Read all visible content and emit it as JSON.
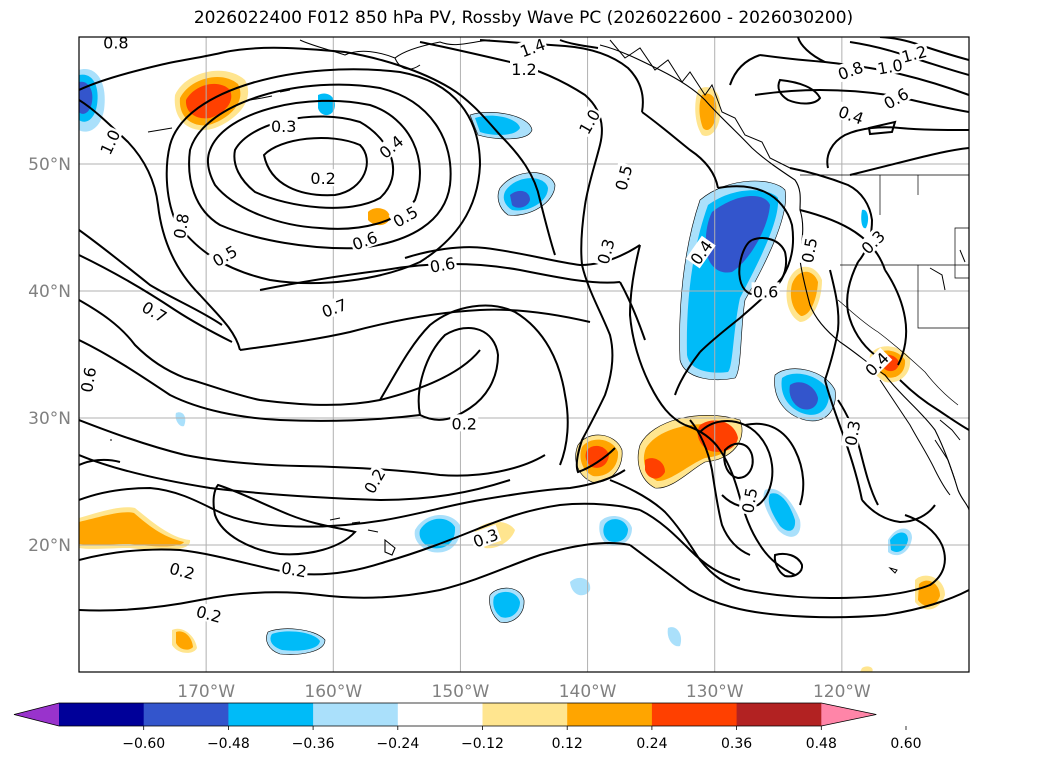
{
  "title": "2026022400 F012 850 hPa PV, Rossby Wave PC (2026022600 - 2026030200)",
  "map": {
    "lon_range": [
      -180,
      -110
    ],
    "lat_range": [
      10,
      60
    ],
    "lon_ticks": [
      {
        "value": -170,
        "label": "170°W"
      },
      {
        "value": -160,
        "label": "160°W"
      },
      {
        "value": -150,
        "label": "150°W"
      },
      {
        "value": -140,
        "label": "140°W"
      },
      {
        "value": -130,
        "label": "130°W"
      },
      {
        "value": -120,
        "label": "120°W"
      }
    ],
    "lat_ticks": [
      {
        "value": 20,
        "label": "20°N"
      },
      {
        "value": 30,
        "label": "30°N"
      },
      {
        "value": 40,
        "label": "40°N"
      },
      {
        "value": 50,
        "label": "50°N"
      }
    ],
    "grid": true
  },
  "contour_labels": [
    {
      "text": "0.8",
      "lon": -177.1,
      "lat": 59.5,
      "rot": 0
    },
    {
      "text": "1.0",
      "lon": -177.5,
      "lat": 51.7,
      "rot": -65
    },
    {
      "text": "0.3",
      "lon": -163.9,
      "lat": 52.9,
      "rot": 0
    },
    {
      "text": "0.2",
      "lon": -160.8,
      "lat": 48.8,
      "rot": 0
    },
    {
      "text": "0.4",
      "lon": -155.4,
      "lat": 51.3,
      "rot": -40
    },
    {
      "text": "0.5",
      "lon": -154.3,
      "lat": 45.8,
      "rot": -30
    },
    {
      "text": "0.6",
      "lon": -157.5,
      "lat": 43.9,
      "rot": -20
    },
    {
      "text": "0.8",
      "lon": -171.9,
      "lat": 45.1,
      "rot": -80
    },
    {
      "text": "0.5",
      "lon": -168.5,
      "lat": 42.7,
      "rot": -30
    },
    {
      "text": "0.6",
      "lon": -151.4,
      "lat": 42.0,
      "rot": -10
    },
    {
      "text": "0.7",
      "lon": -159.9,
      "lat": 38.6,
      "rot": -20
    },
    {
      "text": "0.7",
      "lon": -174.1,
      "lat": 38.3,
      "rot": 30
    },
    {
      "text": "0.6",
      "lon": -179.2,
      "lat": 33.0,
      "rot": -80
    },
    {
      "text": "1.4",
      "lon": -144.3,
      "lat": 59.1,
      "rot": -20
    },
    {
      "text": "1.2",
      "lon": -145.0,
      "lat": 57.4,
      "rot": 0
    },
    {
      "text": "1.0",
      "lon": -139.8,
      "lat": 53.3,
      "rot": -60
    },
    {
      "text": "0.5",
      "lon": -137.1,
      "lat": 48.9,
      "rot": -75
    },
    {
      "text": "0.3",
      "lon": -138.5,
      "lat": 43.1,
      "rot": -75
    },
    {
      "text": "0.4",
      "lon": -131.0,
      "lat": 43.0,
      "rot": -55
    },
    {
      "text": "0.6",
      "lon": -126.0,
      "lat": 39.9,
      "rot": 0
    },
    {
      "text": "0.5",
      "lon": -122.5,
      "lat": 43.2,
      "rot": -80
    },
    {
      "text": "0.3",
      "lon": -117.5,
      "lat": 43.8,
      "rot": -45
    },
    {
      "text": "0.2",
      "lon": -149.7,
      "lat": 29.5,
      "rot": 0
    },
    {
      "text": "0.2",
      "lon": -156.7,
      "lat": 25.0,
      "rot": -60
    },
    {
      "text": "0.3",
      "lon": -148.0,
      "lat": 20.5,
      "rot": -20
    },
    {
      "text": "0.2",
      "lon": -171.9,
      "lat": 17.9,
      "rot": 15
    },
    {
      "text": "0.2",
      "lon": -163.1,
      "lat": 18.0,
      "rot": 10
    },
    {
      "text": "0.2",
      "lon": -169.8,
      "lat": 14.5,
      "rot": 15
    },
    {
      "text": "0.5",
      "lon": -127.2,
      "lat": 23.5,
      "rot": -80
    },
    {
      "text": "0.3",
      "lon": -119.1,
      "lat": 28.8,
      "rot": -80
    },
    {
      "text": "0.4",
      "lon": -117.2,
      "lat": 34.2,
      "rot": -45
    },
    {
      "text": "1.2",
      "lon": -114.3,
      "lat": 58.6,
      "rot": -15
    },
    {
      "text": "1.0",
      "lon": -116.2,
      "lat": 57.6,
      "rot": -10
    },
    {
      "text": "0.8",
      "lon": -119.3,
      "lat": 57.3,
      "rot": -20
    },
    {
      "text": "0.6",
      "lon": -115.7,
      "lat": 55.1,
      "rot": -30
    },
    {
      "text": "0.4",
      "lon": -119.3,
      "lat": 53.8,
      "rot": 20
    }
  ],
  "colorbar": {
    "colors": [
      "#9933cc",
      "#000099",
      "#3355cc",
      "#00bbf8",
      "#aae0fb",
      "#ffffff",
      "#ffe58f",
      "#ffa500",
      "#ff4000",
      "#b22222",
      "#ff85a8"
    ],
    "tick_labels": [
      "−0.60",
      "−0.48",
      "−0.36",
      "−0.24",
      "−0.12",
      "0.12",
      "0.24",
      "0.36",
      "0.48",
      "0.60"
    ],
    "extend": "both"
  },
  "fill_colors": {
    "neg_light": "#aae0fb",
    "neg_mid": "#00bbf8",
    "neg_strong": "#3355cc",
    "pos_light": "#ffe58f",
    "pos_mid": "#ffa500",
    "pos_strong": "#ff4000"
  }
}
